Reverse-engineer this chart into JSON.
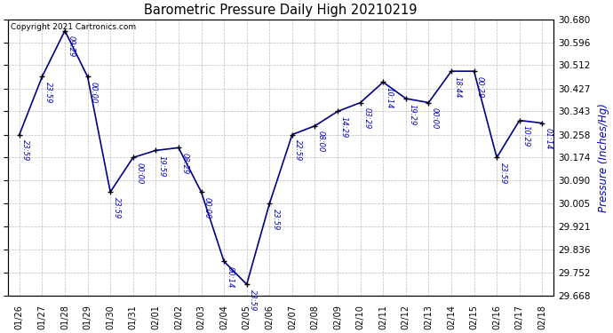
{
  "title": "Barometric Pressure Daily High 20210219",
  "ylabel": "Pressure (Inches/Hg)",
  "copyright_text": "Copyright 2021 Cartronics.com",
  "background_color": "#ffffff",
  "line_color": "#00008B",
  "text_color": "#0000CD",
  "title_color": "#000000",
  "ylim_min": 29.668,
  "ylim_max": 30.68,
  "yticks": [
    29.668,
    29.752,
    29.836,
    29.921,
    30.005,
    30.09,
    30.174,
    30.258,
    30.343,
    30.427,
    30.512,
    30.596,
    30.68
  ],
  "dates": [
    "01/26",
    "01/27",
    "01/28",
    "01/29",
    "01/30",
    "01/31",
    "02/01",
    "02/02",
    "02/03",
    "02/04",
    "02/05",
    "02/06",
    "02/07",
    "02/08",
    "02/09",
    "02/10",
    "02/11",
    "02/12",
    "02/13",
    "02/14",
    "02/15",
    "02/16",
    "02/17",
    "02/18"
  ],
  "values": [
    30.258,
    30.47,
    30.638,
    30.47,
    30.048,
    30.174,
    30.2,
    30.21,
    30.048,
    29.794,
    29.71,
    30.005,
    30.258,
    30.29,
    30.343,
    30.375,
    30.45,
    30.39,
    30.375,
    30.49,
    30.49,
    30.174,
    30.31,
    30.3
  ],
  "annotations": [
    "23:59",
    "23:59",
    "09:29",
    "00:00",
    "23:59",
    "00:00",
    "19:59",
    "08:29",
    "00:00",
    "00:14",
    "23:59",
    "23:59",
    "22:59",
    "08:00",
    "14:29",
    "03:29",
    "10:14",
    "19:29",
    "00:00",
    "18:44",
    "00:29",
    "23:59",
    "10:29",
    "01:14"
  ],
  "grid_color": "#bbbbbb",
  "marker_color": "#000000",
  "font_family": "DejaVu Sans"
}
